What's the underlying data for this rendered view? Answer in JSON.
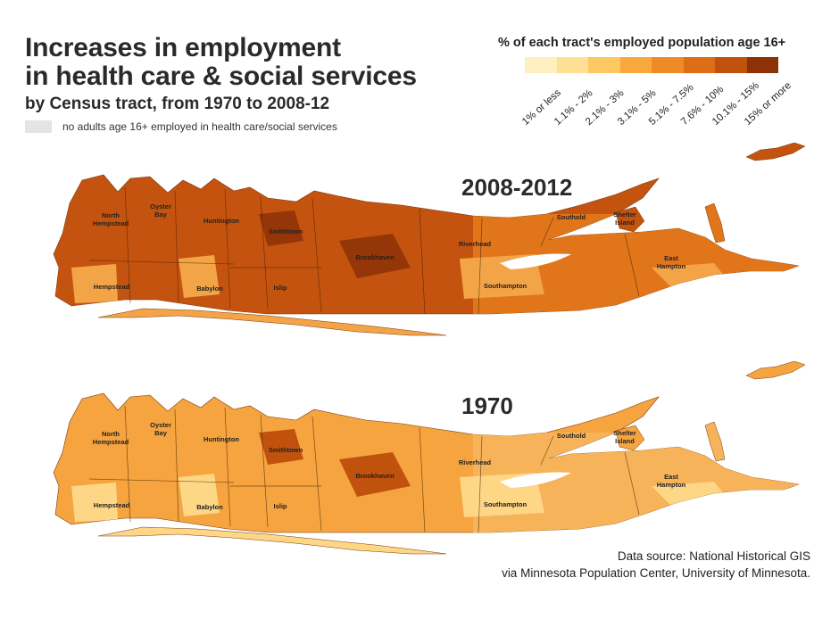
{
  "title": {
    "line1": "Increases in employment",
    "line2": "in health care & social services",
    "subtitle": "by Census tract, from 1970 to 2008-12"
  },
  "no_data_label": "no adults age 16+ employed in health care/social services",
  "legend": {
    "title": "% of each tract's employed population age 16+",
    "bins": [
      {
        "label": "1% or less",
        "color": "#fff0bf"
      },
      {
        "label": "1.1% - 2%",
        "color": "#fedf93"
      },
      {
        "label": "2.1% - 3%",
        "color": "#fdc861"
      },
      {
        "label": "3.1% - 5%",
        "color": "#f9a93c"
      },
      {
        "label": "5.1% - 7.5%",
        "color": "#ef8b26"
      },
      {
        "label": "7.6% - 10%",
        "color": "#de6d18"
      },
      {
        "label": "10.1% - 15%",
        "color": "#c0520e"
      },
      {
        "label": "15% or more",
        "color": "#8c3206"
      }
    ]
  },
  "maps": [
    {
      "year": "2008-2012",
      "fills": {
        "base": "#c4530f",
        "east": "#e0751a",
        "light": "#f3a447",
        "dark": "#943607"
      }
    },
    {
      "year": "1970",
      "fills": {
        "base": "#f5a43f",
        "east": "#f7b35a",
        "light": "#fdd686",
        "dark": "#c0520e"
      }
    }
  ],
  "place_names": {
    "north_hempstead": [
      "North",
      "Hempstead"
    ],
    "oyster_bay": [
      "Oyster",
      "Bay"
    ],
    "huntington": "Huntington",
    "smithtown": "Smithtown",
    "brookhaven": "Brookhaven",
    "riverhead": "Riverhead",
    "southold": "Southold",
    "shelter_island": [
      "Shelter",
      "Island"
    ],
    "east_hampton": [
      "East",
      "Hampton"
    ],
    "southampton": "Southampton",
    "hempstead": "Hempstead",
    "babylon": "Babylon",
    "islip": "Islip"
  },
  "source": {
    "line1": "Data source: National Historical GIS",
    "line2": "via Minnesota Population Center, University of Minnesota."
  }
}
